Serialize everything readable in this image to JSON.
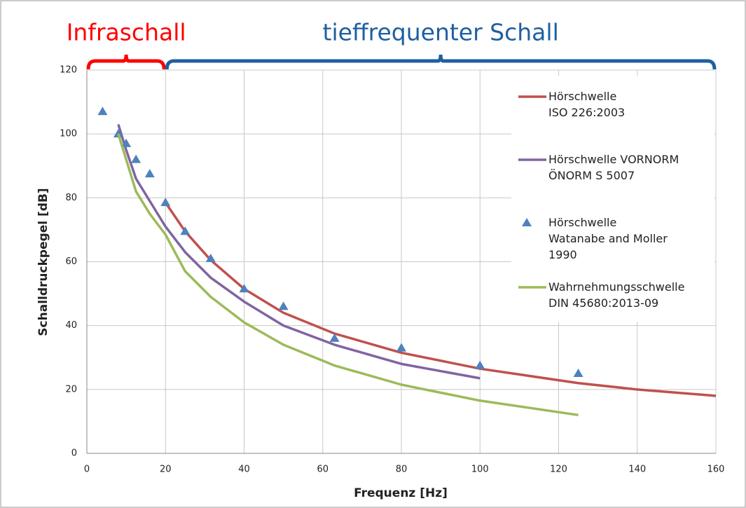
{
  "chart_data": {
    "type": "line",
    "xlabel": "Frequenz [Hz]",
    "ylabel": "Schalldruckpegel [dB]",
    "xlim": [
      0,
      160
    ],
    "xticks": [
      0,
      20,
      40,
      60,
      80,
      100,
      120,
      140,
      160
    ],
    "ylim": [
      0,
      120
    ],
    "yticks": [
      0,
      20,
      40,
      60,
      80,
      100,
      120
    ],
    "grid": true,
    "annotations": [
      {
        "text": "Infraschall",
        "color": "#ff0000",
        "span": [
          0,
          20
        ]
      },
      {
        "text": "tieffrequenter Schall",
        "color": "#1f5fa0",
        "span": [
          20,
          160
        ]
      }
    ],
    "series": [
      {
        "name": "Hörschwelle\nISO 226:2003",
        "color": "#c0504d",
        "marker": "none",
        "x": [
          20,
          25,
          31.5,
          40,
          50,
          63,
          80,
          100,
          125,
          140,
          160
        ],
        "values": [
          78.5,
          69.5,
          60.5,
          51.5,
          44,
          37.5,
          31.5,
          26.5,
          22,
          20,
          18
        ]
      },
      {
        "name": "Hörschwelle VORNORM\nÖNORM S 5007",
        "color": "#8064a2",
        "marker": "none",
        "x": [
          8,
          10,
          12.5,
          16,
          20,
          25,
          31.5,
          40,
          50,
          63,
          80,
          100
        ],
        "values": [
          103,
          95,
          86,
          79,
          71,
          63,
          55,
          47.5,
          40,
          34,
          28,
          23.5
        ]
      },
      {
        "name": "Hörschwelle\nWatanabe and Moller\n1990",
        "color": "#4f81bd",
        "marker": "triangle",
        "x": [
          4,
          8,
          10,
          12.5,
          16,
          20,
          25,
          31.5,
          40,
          50,
          63,
          80,
          100,
          125
        ],
        "values": [
          107,
          100,
          97,
          92,
          87.5,
          78.5,
          69.5,
          61,
          51.5,
          46,
          36,
          33,
          27.5,
          25
        ]
      },
      {
        "name": "Wahrnehmungsschwelle\nDIN 45680:2013-09",
        "color": "#9bbb59",
        "marker": "none",
        "x": [
          8,
          10,
          12.5,
          16,
          20,
          25,
          31.5,
          40,
          50,
          63,
          80,
          100,
          125
        ],
        "values": [
          100,
          92,
          82,
          75,
          68.5,
          57,
          49,
          41,
          34,
          27.5,
          21.5,
          16.5,
          12
        ]
      }
    ]
  }
}
